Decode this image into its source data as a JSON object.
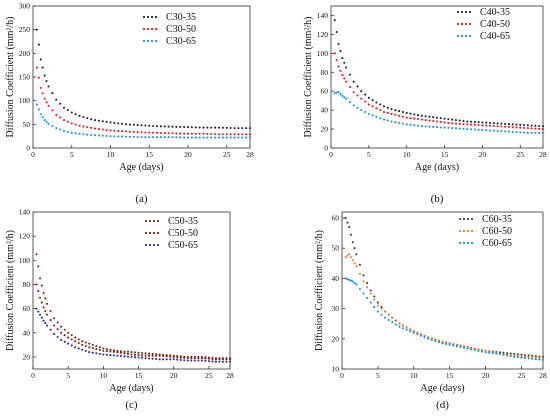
{
  "chart_data": [
    {
      "type": "scatter",
      "panel_label": "(a)",
      "xlabel": "Age (days)",
      "ylabel": "Diffusion Coefficient (mm²/h)",
      "xlim": [
        0,
        28
      ],
      "ylim": [
        0,
        300
      ],
      "xticks": [
        0,
        5,
        10,
        15,
        20,
        25,
        28
      ],
      "yticks": [
        0,
        50,
        100,
        150,
        200,
        250,
        300
      ],
      "legend_position": "top-right",
      "series": [
        {
          "name": "C30-35",
          "color": "#222222",
          "D28": 42,
          "x": [
            0.5,
            1,
            1.5,
            2,
            3,
            4,
            5,
            6,
            7,
            8,
            10,
            12,
            14,
            16,
            18,
            20,
            22,
            24,
            26,
            28
          ],
          "y": [
            250,
            187,
            153,
            130,
            102,
            85,
            75,
            68,
            63,
            59,
            54,
            50,
            48,
            46,
            45,
            44,
            43,
            43,
            42,
            42
          ]
        },
        {
          "name": "C30-50",
          "color": "#e8191f",
          "D28": 29,
          "x": [
            0.5,
            1,
            1.5,
            2,
            3,
            4,
            5,
            6,
            7,
            8,
            10,
            12,
            14,
            16,
            18,
            20,
            22,
            24,
            26,
            28
          ],
          "y": [
            170,
            127,
            104,
            89,
            70,
            59,
            52,
            47,
            44,
            41,
            37,
            35,
            33,
            32,
            31,
            30,
            30,
            29,
            29,
            29
          ]
        },
        {
          "name": "C30-65",
          "color": "#1a8fe0",
          "D28": 22,
          "x": [
            0.5,
            1,
            1.5,
            2,
            3,
            4,
            5,
            6,
            7,
            8,
            10,
            12,
            14,
            16,
            18,
            20,
            22,
            24,
            26,
            28
          ],
          "y": [
            92,
            71,
            59,
            51,
            42,
            36,
            32,
            30,
            28,
            27,
            25,
            24,
            23,
            23,
            23,
            22,
            22,
            22,
            22,
            22
          ]
        }
      ]
    },
    {
      "type": "scatter",
      "panel_label": "(b)",
      "xlabel": "Age (days)",
      "ylabel": "Diffusion Coefficient (mm²/h)",
      "xlim": [
        0,
        28
      ],
      "ylim": [
        0,
        150
      ],
      "xticks": [
        0,
        5,
        10,
        15,
        20,
        25,
        28
      ],
      "yticks": [
        0,
        20,
        40,
        60,
        80,
        100,
        120,
        140
      ],
      "legend_position": "top-right",
      "series": [
        {
          "name": "C40-35",
          "color": "#222222",
          "D28": 23,
          "x": [
            0.5,
            1,
            1.5,
            2,
            3,
            4,
            5,
            6,
            7,
            8,
            10,
            12,
            14,
            16,
            18,
            20,
            22,
            24,
            26,
            28
          ],
          "y": [
            135,
            110,
            95,
            85,
            70,
            60,
            53,
            48,
            44,
            41,
            37,
            34,
            32,
            30,
            28,
            27,
            26,
            25,
            24,
            23
          ]
        },
        {
          "name": "C40-50",
          "color": "#e8191f",
          "D28": 20,
          "x": [
            0.5,
            1,
            1.5,
            2,
            3,
            4,
            5,
            6,
            7,
            8,
            10,
            12,
            14,
            16,
            18,
            20,
            22,
            24,
            26,
            28
          ],
          "y": [
            100,
            86,
            77,
            70,
            59,
            52,
            46,
            42,
            38,
            36,
            32,
            30,
            28,
            26,
            25,
            24,
            23,
            22,
            21,
            20
          ]
        },
        {
          "name": "C40-65",
          "color": "#1a8fe0",
          "D28": 16,
          "x": [
            0.5,
            1,
            1.5,
            2,
            3,
            4,
            5,
            6,
            7,
            8,
            10,
            12,
            14,
            16,
            18,
            20,
            22,
            24,
            26,
            28
          ],
          "y": [
            58,
            59,
            55,
            52,
            45,
            40,
            36,
            33,
            30,
            28,
            25,
            23,
            22,
            21,
            20,
            19,
            18,
            17,
            16,
            16
          ]
        }
      ]
    },
    {
      "type": "scatter",
      "panel_label": "(c)",
      "xlabel": "Age (days)",
      "ylabel": "Diffusion Coefficient (mm²/h)",
      "xlim": [
        0,
        28
      ],
      "ylim": [
        10,
        140
      ],
      "xticks": [
        0,
        5,
        10,
        15,
        20,
        25,
        28
      ],
      "yticks": [
        20,
        40,
        60,
        80,
        100,
        120,
        140
      ],
      "legend_position": "top-right",
      "series": [
        {
          "name": "C50-35",
          "color": "#6b2f1a",
          "D28": 19,
          "x": [
            0.5,
            1,
            1.5,
            2,
            3,
            4,
            5,
            6,
            7,
            8,
            10,
            12,
            14,
            16,
            18,
            20,
            22,
            24,
            26,
            28
          ],
          "y": [
            105,
            85,
            73,
            64,
            52,
            45,
            40,
            36,
            33,
            31,
            27,
            25,
            24,
            23,
            22,
            21,
            20,
            20,
            19,
            19
          ]
        },
        {
          "name": "C50-50",
          "color": "#8b1a1a",
          "D28": 18,
          "x": [
            0.5,
            1,
            1.5,
            2,
            3,
            4,
            5,
            6,
            7,
            8,
            10,
            12,
            14,
            16,
            18,
            20,
            22,
            24,
            26,
            28
          ],
          "y": [
            80,
            69,
            61,
            55,
            46,
            40,
            36,
            33,
            30,
            28,
            25,
            24,
            22,
            21,
            21,
            20,
            19,
            19,
            18,
            18
          ]
        },
        {
          "name": "C50-65",
          "color": "#2a2a9c",
          "D28": 16,
          "x": [
            0.5,
            1,
            1.5,
            2,
            3,
            4,
            5,
            6,
            7,
            8,
            10,
            12,
            14,
            16,
            18,
            20,
            22,
            24,
            26,
            28
          ],
          "y": [
            60,
            55,
            50,
            46,
            39,
            34,
            31,
            28,
            26,
            24,
            22,
            21,
            20,
            19,
            18,
            18,
            17,
            17,
            16,
            16
          ]
        }
      ]
    },
    {
      "type": "scatter",
      "panel_label": "(d)",
      "xlabel": "Age (days)",
      "ylabel": "Diffusion Coefficient (mm²/h)",
      "xlim": [
        0,
        28
      ],
      "ylim": [
        10,
        62
      ],
      "xticks": [
        0,
        5,
        10,
        15,
        20,
        25,
        28
      ],
      "yticks": [
        10,
        20,
        30,
        40,
        50,
        60
      ],
      "legend_position": "top-right",
      "series": [
        {
          "name": "C60-35",
          "color": "#4a3a2a",
          "D28": 14,
          "x": [
            0.5,
            1,
            1.5,
            2,
            3,
            4,
            5,
            6,
            7,
            8,
            10,
            12,
            14,
            16,
            18,
            20,
            22,
            24,
            26,
            28
          ],
          "y": [
            60,
            57,
            52,
            48,
            41,
            36,
            32,
            29,
            27,
            25,
            22.5,
            20.5,
            19,
            18,
            17,
            16,
            15.5,
            15,
            14.5,
            14
          ]
        },
        {
          "name": "C60-50",
          "color": "#e27a3a",
          "D28": 13.5,
          "x": [
            0.5,
            1,
            1.5,
            2,
            3,
            4,
            5,
            6,
            7,
            8,
            10,
            12,
            14,
            16,
            18,
            20,
            22,
            24,
            26,
            28
          ],
          "y": [
            47,
            48,
            46,
            44,
            39,
            35,
            31,
            29,
            27,
            25,
            22.5,
            20.5,
            19,
            18,
            17,
            16,
            15,
            14.5,
            14,
            13.5
          ]
        },
        {
          "name": "C60-65",
          "color": "#1a8fe0",
          "D28": 13,
          "x": [
            0.5,
            1,
            1.5,
            2,
            3,
            4,
            5,
            6,
            7,
            8,
            10,
            12,
            14,
            16,
            18,
            20,
            22,
            24,
            26,
            28
          ],
          "y": [
            40,
            39.5,
            39,
            38,
            35,
            32,
            29,
            27,
            25.5,
            24,
            22,
            20,
            18.5,
            17.5,
            16.5,
            15.5,
            15,
            14,
            13.5,
            13
          ]
        }
      ]
    }
  ]
}
